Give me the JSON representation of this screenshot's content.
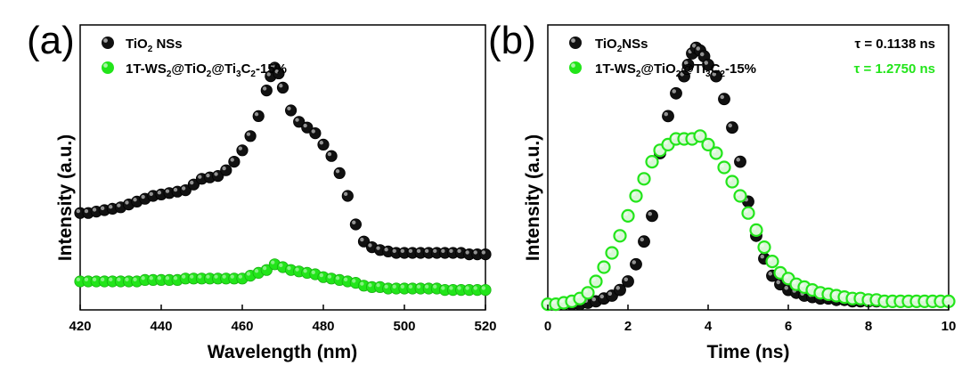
{
  "chart_data": [
    {
      "panel": "(a)",
      "type": "scatter",
      "xlabel": "Wavelength (nm)",
      "ylabel": "Intensity (a.u.)",
      "xlim": [
        420,
        520
      ],
      "ylim": [
        0,
        1
      ],
      "xticks": [
        420,
        440,
        460,
        480,
        500,
        520
      ],
      "yticks_shown": false,
      "legend_placement": "top-left",
      "series": [
        {
          "name": "TiO2 NSs",
          "color": "#111111",
          "x": [
            420,
            422,
            424,
            426,
            428,
            430,
            432,
            434,
            436,
            438,
            440,
            442,
            444,
            446,
            448,
            450,
            452,
            454,
            456,
            458,
            460,
            462,
            464,
            466,
            467,
            468,
            469,
            470,
            472,
            474,
            476,
            478,
            480,
            482,
            484,
            486,
            488,
            490,
            492,
            494,
            496,
            498,
            500,
            502,
            504,
            506,
            508,
            510,
            512,
            514,
            516,
            518,
            520
          ],
          "y": [
            0.34,
            0.34,
            0.345,
            0.35,
            0.355,
            0.36,
            0.37,
            0.38,
            0.39,
            0.4,
            0.405,
            0.41,
            0.415,
            0.42,
            0.44,
            0.46,
            0.465,
            0.47,
            0.49,
            0.52,
            0.56,
            0.61,
            0.68,
            0.77,
            0.82,
            0.85,
            0.83,
            0.78,
            0.7,
            0.66,
            0.64,
            0.62,
            0.58,
            0.54,
            0.48,
            0.4,
            0.3,
            0.24,
            0.22,
            0.21,
            0.205,
            0.2,
            0.2,
            0.2,
            0.2,
            0.2,
            0.2,
            0.2,
            0.2,
            0.2,
            0.195,
            0.195,
            0.195
          ]
        },
        {
          "name": "1T-WS2@TiO2@Ti3C2-15%",
          "color": "#22e51a",
          "x": [
            420,
            422,
            424,
            426,
            428,
            430,
            432,
            434,
            436,
            438,
            440,
            442,
            444,
            446,
            448,
            450,
            452,
            454,
            456,
            458,
            460,
            462,
            464,
            466,
            468,
            470,
            472,
            474,
            476,
            478,
            480,
            482,
            484,
            486,
            488,
            490,
            492,
            494,
            496,
            498,
            500,
            502,
            504,
            506,
            508,
            510,
            512,
            514,
            516,
            518,
            520
          ],
          "y": [
            0.1,
            0.1,
            0.1,
            0.1,
            0.1,
            0.1,
            0.1,
            0.1,
            0.105,
            0.105,
            0.105,
            0.105,
            0.105,
            0.11,
            0.11,
            0.11,
            0.11,
            0.11,
            0.11,
            0.11,
            0.11,
            0.12,
            0.13,
            0.14,
            0.16,
            0.15,
            0.14,
            0.135,
            0.13,
            0.125,
            0.115,
            0.11,
            0.105,
            0.1,
            0.095,
            0.085,
            0.08,
            0.08,
            0.075,
            0.075,
            0.075,
            0.075,
            0.075,
            0.075,
            0.075,
            0.07,
            0.07,
            0.07,
            0.07,
            0.07,
            0.07
          ]
        }
      ]
    },
    {
      "panel": "(b)",
      "type": "scatter",
      "xlabel": "Time (ns)",
      "ylabel": "Intensity (a.u.)",
      "xlim": [
        0,
        10
      ],
      "ylim": [
        0,
        1
      ],
      "xticks": [
        0,
        2,
        4,
        6,
        8,
        10
      ],
      "yticks_shown": false,
      "legend_placement": "top-left",
      "annotations": [
        {
          "text": "τ = 0.1138 ns",
          "color": "#000000"
        },
        {
          "text": "τ = 1.2750 ns",
          "color": "#22e51a"
        }
      ],
      "series": [
        {
          "name": "TiO2NSs",
          "color": "#111111",
          "x": [
            0.0,
            0.2,
            0.4,
            0.6,
            0.8,
            1.0,
            1.2,
            1.4,
            1.6,
            1.8,
            2.0,
            2.2,
            2.4,
            2.6,
            2.8,
            3.0,
            3.2,
            3.4,
            3.5,
            3.6,
            3.7,
            3.8,
            3.9,
            4.0,
            4.2,
            4.4,
            4.6,
            4.8,
            5.0,
            5.2,
            5.4,
            5.6,
            5.8,
            6.0,
            6.2,
            6.4,
            6.6,
            6.8,
            7.0,
            7.2,
            7.4,
            7.6,
            7.8,
            8.0,
            8.2,
            8.4,
            8.6,
            8.8,
            9.0,
            9.2,
            9.4,
            9.6,
            9.8,
            10.0
          ],
          "y": [
            0.02,
            0.02,
            0.02,
            0.02,
            0.02,
            0.025,
            0.03,
            0.04,
            0.05,
            0.07,
            0.1,
            0.16,
            0.24,
            0.33,
            0.55,
            0.68,
            0.76,
            0.82,
            0.86,
            0.9,
            0.92,
            0.91,
            0.89,
            0.86,
            0.82,
            0.74,
            0.64,
            0.52,
            0.38,
            0.26,
            0.18,
            0.12,
            0.09,
            0.07,
            0.06,
            0.05,
            0.045,
            0.04,
            0.04,
            0.035,
            0.035,
            0.03,
            0.03,
            0.03,
            0.03,
            0.03,
            0.03,
            0.03,
            0.03,
            0.03,
            0.03,
            0.03,
            0.03,
            0.03
          ]
        },
        {
          "name": "1T-WS2@TiO2@Ti3C2-15%",
          "color": "#22e51a",
          "x": [
            0.0,
            0.2,
            0.4,
            0.6,
            0.8,
            1.0,
            1.2,
            1.4,
            1.6,
            1.8,
            2.0,
            2.2,
            2.4,
            2.6,
            2.8,
            3.0,
            3.2,
            3.4,
            3.6,
            3.8,
            4.0,
            4.2,
            4.4,
            4.6,
            4.8,
            5.0,
            5.2,
            5.4,
            5.6,
            5.8,
            6.0,
            6.2,
            6.4,
            6.6,
            6.8,
            7.0,
            7.2,
            7.4,
            7.6,
            7.8,
            8.0,
            8.2,
            8.4,
            8.6,
            8.8,
            9.0,
            9.2,
            9.4,
            9.6,
            9.8,
            10.0
          ],
          "y": [
            0.02,
            0.02,
            0.025,
            0.03,
            0.04,
            0.06,
            0.1,
            0.15,
            0.2,
            0.26,
            0.33,
            0.4,
            0.46,
            0.52,
            0.56,
            0.58,
            0.6,
            0.6,
            0.6,
            0.61,
            0.58,
            0.55,
            0.5,
            0.45,
            0.4,
            0.34,
            0.28,
            0.22,
            0.17,
            0.13,
            0.11,
            0.09,
            0.08,
            0.07,
            0.06,
            0.055,
            0.05,
            0.045,
            0.04,
            0.04,
            0.035,
            0.035,
            0.03,
            0.03,
            0.03,
            0.03,
            0.03,
            0.03,
            0.03,
            0.03,
            0.03
          ]
        }
      ]
    }
  ]
}
